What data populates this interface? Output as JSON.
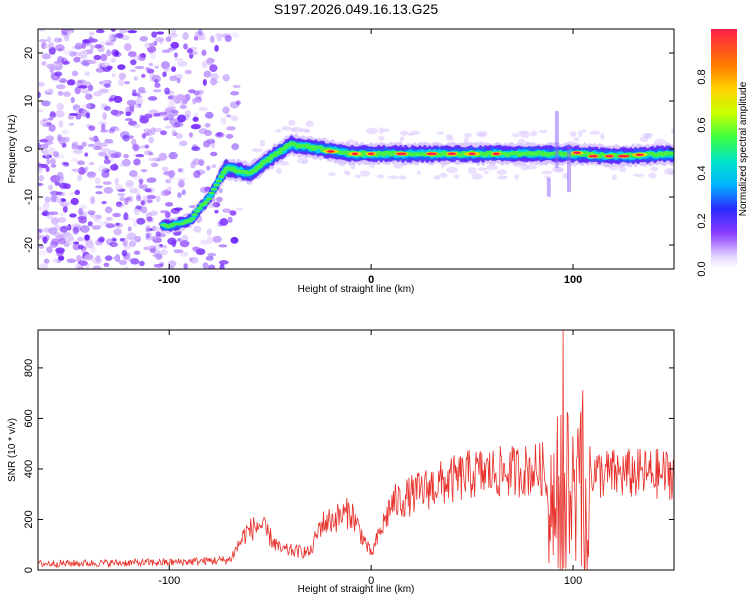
{
  "title": "S197.2026.049.16.13.G25",
  "chart_data": [
    {
      "type": "heatmap",
      "name": "spectrogram",
      "xlabel": "Height of straight line (km)",
      "ylabel": "Frequency (Hz)",
      "xlim": [
        -165,
        150
      ],
      "ylim": [
        -25,
        25
      ],
      "xticks": [
        -100,
        0,
        100
      ],
      "yticks": [
        -20,
        -10,
        0,
        10,
        20
      ],
      "ridge": {
        "description_points": [
          {
            "x": -100,
            "y": -16
          },
          {
            "x": -90,
            "y": -15
          },
          {
            "x": -80,
            "y": -10
          },
          {
            "x": -72,
            "y": -4
          },
          {
            "x": -60,
            "y": -5
          },
          {
            "x": -50,
            "y": -2
          },
          {
            "x": -40,
            "y": 1
          },
          {
            "x": -25,
            "y": 0
          },
          {
            "x": -10,
            "y": -1
          },
          {
            "x": 0,
            "y": -1
          },
          {
            "x": 50,
            "y": -1
          },
          {
            "x": 90,
            "y": -1
          },
          {
            "x": 100,
            "y": -1
          },
          {
            "x": 120,
            "y": -1.5
          },
          {
            "x": 150,
            "y": -1
          }
        ]
      },
      "colorbar": {
        "label": "Normalized spectral amplitude",
        "ticks": [
          "0.0",
          "0.2",
          "0.4",
          "0.6",
          "0.8"
        ],
        "range": [
          0,
          1
        ]
      }
    },
    {
      "type": "line",
      "name": "snr",
      "xlabel": "Height of straight line (km)",
      "ylabel": "SNR (10 * v/v)",
      "xlim": [
        -165,
        150
      ],
      "ylim": [
        0,
        950
      ],
      "xticks": [
        -100,
        0,
        100
      ],
      "yticks": [
        0,
        200,
        400,
        600,
        800
      ],
      "color": "#e8302a",
      "envelope": [
        {
          "x": -165,
          "y": 25
        },
        {
          "x": -100,
          "y": 30
        },
        {
          "x": -70,
          "y": 40
        },
        {
          "x": -62,
          "y": 150
        },
        {
          "x": -55,
          "y": 180
        },
        {
          "x": -45,
          "y": 80
        },
        {
          "x": -30,
          "y": 70
        },
        {
          "x": -25,
          "y": 180
        },
        {
          "x": -10,
          "y": 230
        },
        {
          "x": 0,
          "y": 60
        },
        {
          "x": 10,
          "y": 260
        },
        {
          "x": 30,
          "y": 330
        },
        {
          "x": 50,
          "y": 380
        },
        {
          "x": 70,
          "y": 390
        },
        {
          "x": 85,
          "y": 400
        },
        {
          "x": 90,
          "y": 250
        },
        {
          "x": 95,
          "y": 850
        },
        {
          "x": 100,
          "y": 30
        },
        {
          "x": 105,
          "y": 600
        },
        {
          "x": 110,
          "y": 380
        },
        {
          "x": 150,
          "y": 380
        }
      ]
    }
  ]
}
